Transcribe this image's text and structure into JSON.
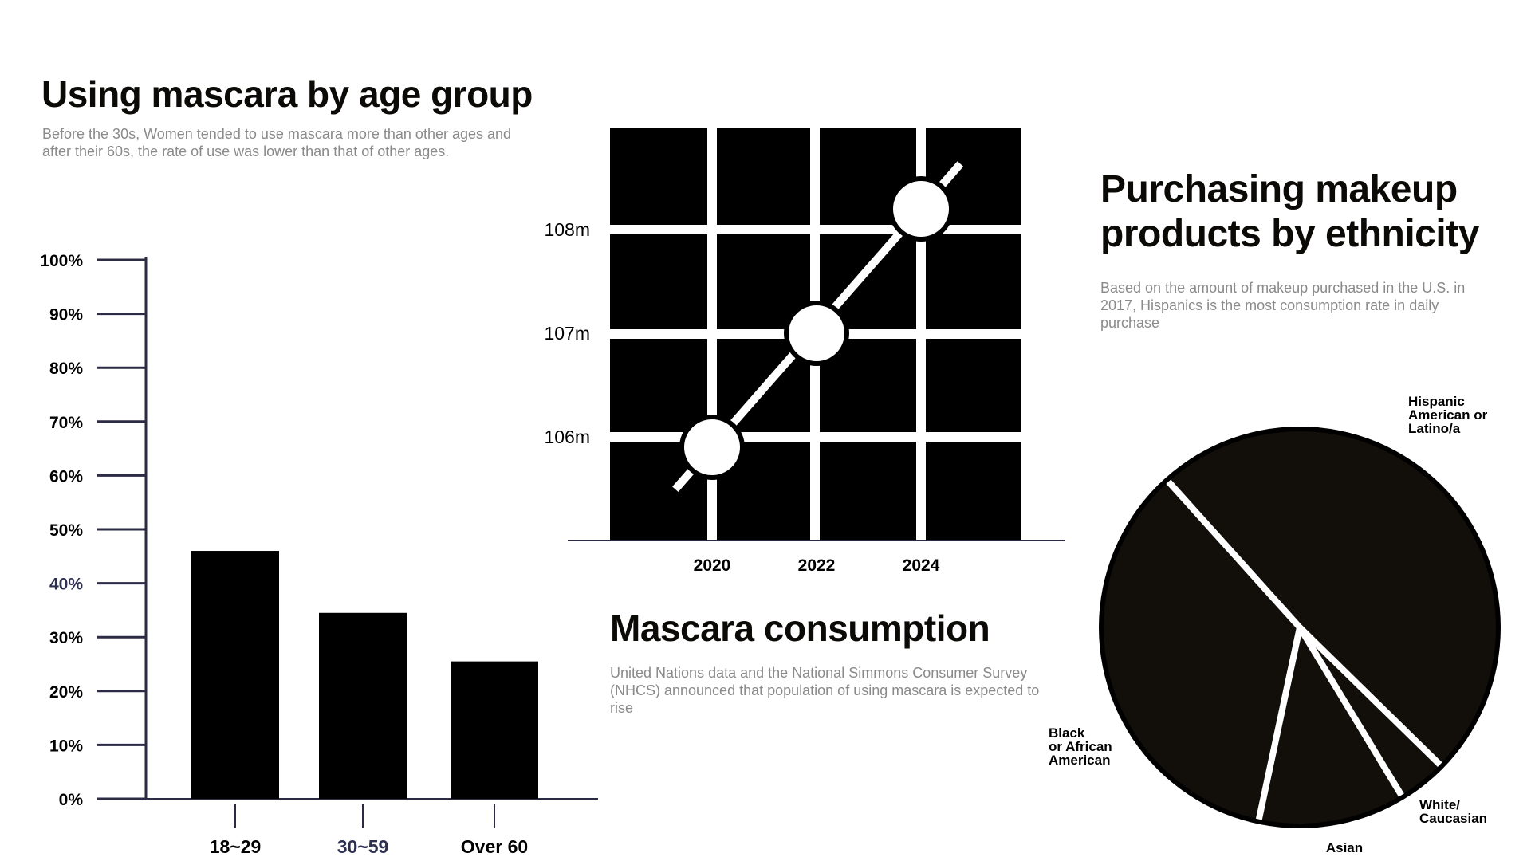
{
  "colors": {
    "ink": "#000000",
    "axis": "#2b2b45",
    "pie_fill": "#120e09",
    "subtitle": "#8a8a8a",
    "highlight_tick": "#2d3050"
  },
  "chart_data": [
    {
      "type": "bar",
      "title": "Using mascara by age group",
      "subtitle": "Before the 30s, Women tended to use mascara more than other ages and after their 60s, the rate of use was lower than that of other ages.",
      "categories": [
        "18~29",
        "30~59",
        "Over 60"
      ],
      "values": [
        46,
        34.5,
        25.5
      ],
      "ylim": [
        0,
        100
      ],
      "yticks": [
        "0%",
        "10%",
        "20%",
        "30%",
        "40%",
        "50%",
        "60%",
        "70%",
        "80%",
        "90%",
        "100%"
      ],
      "grid": false
    },
    {
      "type": "line",
      "title": "Mascara consumption",
      "subtitle": "United Nations data and the National Simmons Consumer Survey (NHCS) announced that population of using mascara is expected to rise",
      "x": [
        "2020",
        "2022",
        "2024"
      ],
      "y": [
        105.9,
        107.0,
        108.2
      ],
      "yticks": [
        "106m",
        "107m",
        "108m"
      ],
      "grid": true,
      "background": "black"
    },
    {
      "type": "pie",
      "title": "Purchasing makeup products by ethnicity",
      "subtitle": "Based on the amount of makeup purchased in the U.S. in 2017, Hispanics is the most consumption rate in daily purchase",
      "labels": [
        "Hispanic American or Latino/a",
        "White/ Caucasian",
        "Asian",
        "Black or African American"
      ],
      "values": [
        49,
        4,
        12,
        35
      ]
    }
  ]
}
